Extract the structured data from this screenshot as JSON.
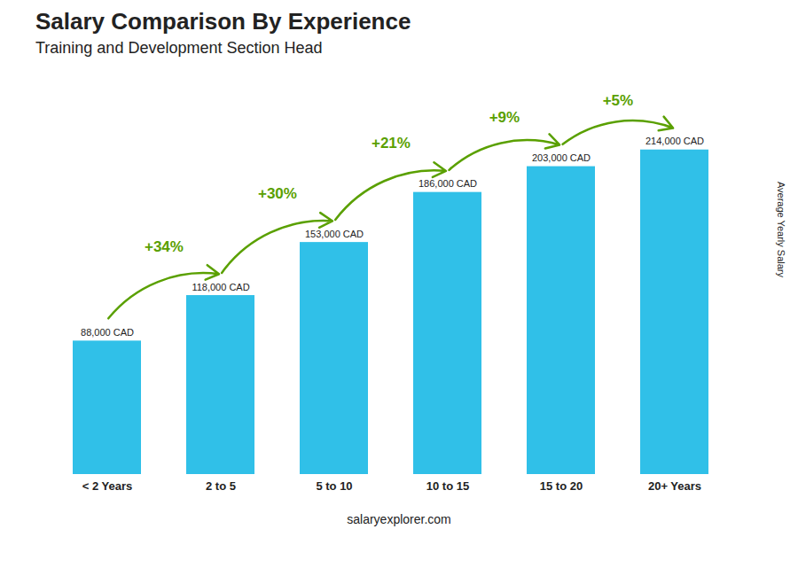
{
  "chart_data": {
    "type": "bar",
    "title": "Salary Comparison By Experience",
    "subtitle": "Training and Development Section Head",
    "categories": [
      "< 2 Years",
      "2 to 5",
      "5 to 10",
      "10 to 15",
      "15 to 20",
      "20+ Years"
    ],
    "values": [
      88000,
      118000,
      153000,
      186000,
      203000,
      214000
    ],
    "value_labels": [
      "88,000 CAD",
      "118,000 CAD",
      "153,000 CAD",
      "186,000 CAD",
      "203,000 CAD",
      "214,000 CAD"
    ],
    "data_labels": true,
    "annotations": [
      "+34%",
      "+30%",
      "+21%",
      "+9%",
      "+5%"
    ],
    "ylabel": "Average Yearly Salary",
    "footer": "salaryexplorer.com",
    "color": "#30c0e8",
    "ylim": [
      0,
      260000
    ],
    "grid": false,
    "tick_labels": "x"
  }
}
